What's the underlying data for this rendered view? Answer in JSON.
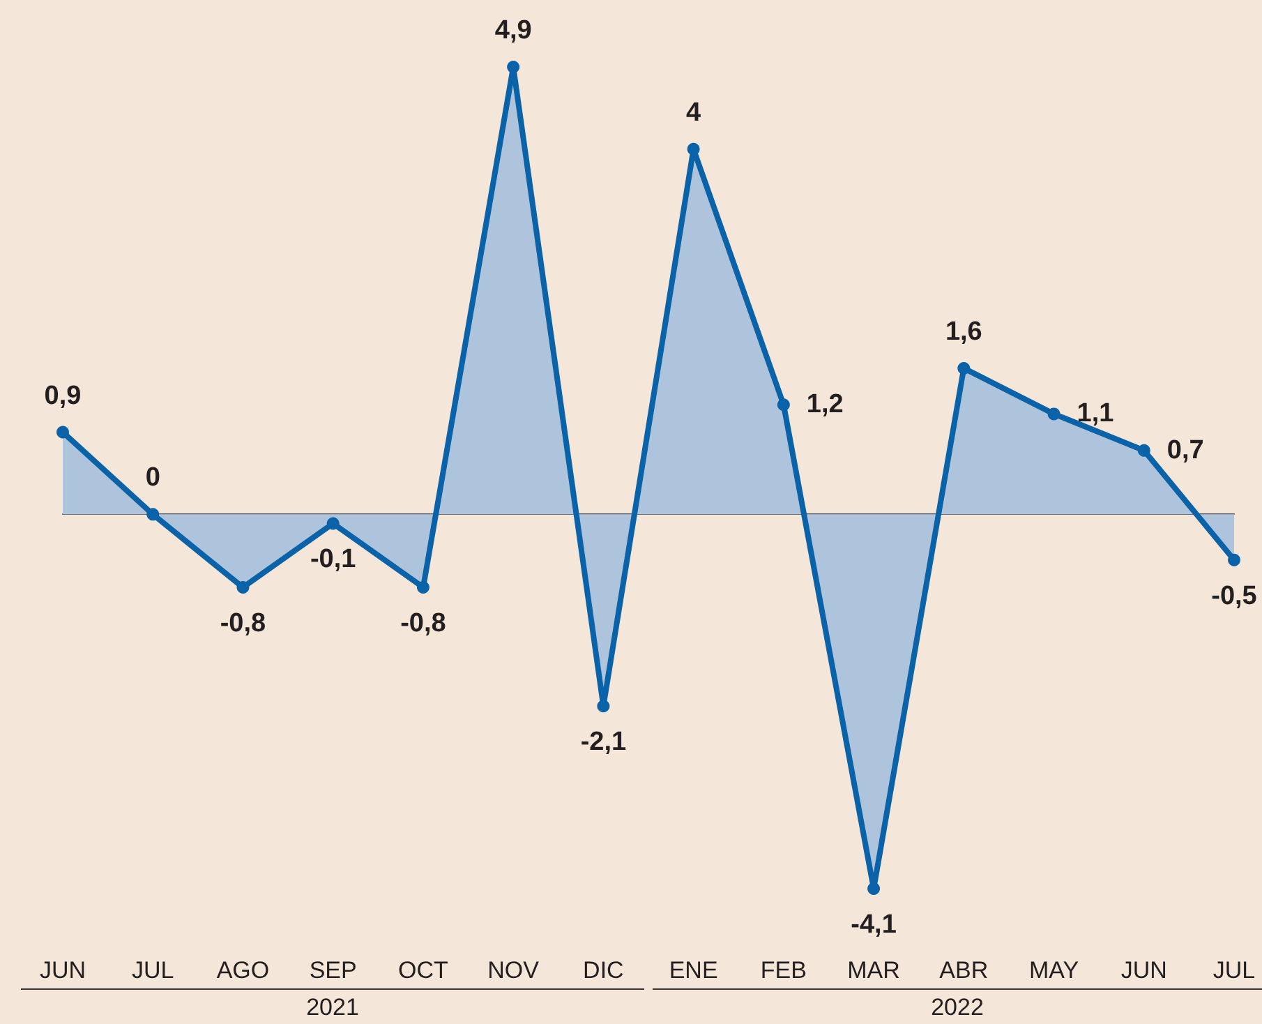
{
  "chart_data": {
    "type": "area",
    "categories": [
      "JUN",
      "JUL",
      "AGO",
      "SEP",
      "OCT",
      "NOV",
      "DIC",
      "ENE",
      "FEB",
      "MAR",
      "ABR",
      "MAY",
      "JUN",
      "JUL"
    ],
    "series": [
      {
        "color": "#0a62a8",
        "values": [
          0.9,
          0,
          -0.8,
          -0.1,
          -0.8,
          4.9,
          -2.1,
          4,
          1.2,
          -4.1,
          1.6,
          1.1,
          0.7,
          -0.5
        ],
        "value_labels": [
          "0,9",
          "0",
          "-0,8",
          "-0,1",
          "-0,8",
          "4,9",
          "-2,1",
          "4",
          "1,2",
          "-4,1",
          "1,6",
          "1,1",
          "0,7",
          "-0,5"
        ]
      }
    ],
    "annotations": [
      "2021",
      "2022"
    ],
    "tick_labels": "x",
    "grid": false,
    "marker": "circle",
    "line_style": "solid"
  }
}
